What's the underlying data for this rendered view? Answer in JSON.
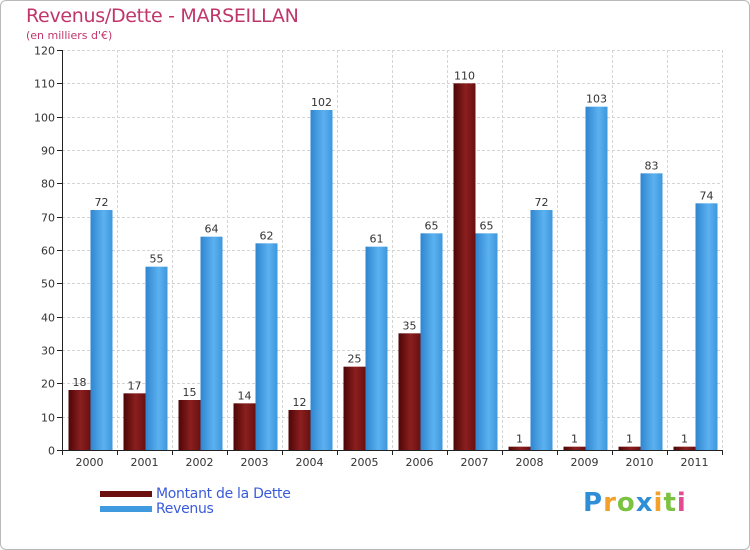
{
  "header": {
    "title": "Revenus/Dette - MARSEILLAN",
    "subtitle": "(en milliers d'€)"
  },
  "chart_data": {
    "type": "bar",
    "title": "Revenus/Dette - MARSEILLAN",
    "ylabel": "(en milliers d'€)",
    "xlabel": "",
    "ylim": [
      0,
      120
    ],
    "yticks": [
      0,
      10,
      20,
      30,
      40,
      50,
      60,
      70,
      80,
      90,
      100,
      110,
      120
    ],
    "grid": true,
    "categories": [
      "2000",
      "2001",
      "2002",
      "2003",
      "2004",
      "2005",
      "2006",
      "2007",
      "2008",
      "2009",
      "2010",
      "2011"
    ],
    "series": [
      {
        "name": "Montant de la Dette",
        "color": "#7a1414",
        "values": [
          18,
          17,
          15,
          14,
          12,
          25,
          35,
          110,
          1,
          1,
          1,
          1
        ]
      },
      {
        "name": "Revenus",
        "color": "#4aa3e8",
        "values": [
          72,
          55,
          64,
          62,
          102,
          61,
          65,
          65,
          72,
          103,
          83,
          74
        ]
      }
    ]
  },
  "legend": {
    "items": [
      {
        "label": "Montant de la Dette",
        "color": "#6b0f0f"
      },
      {
        "label": "Revenus",
        "color": "#3f9ae0"
      }
    ]
  },
  "brand": {
    "letters": [
      "P",
      "r",
      "o",
      "x",
      "i",
      "t",
      "i"
    ],
    "colors": [
      "#2f8fd6",
      "#f2a12a",
      "#7cc242",
      "#2f8fd6",
      "#f2a12a",
      "#7cc242",
      "#e34b8f"
    ]
  }
}
